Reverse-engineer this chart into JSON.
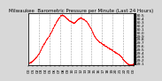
{
  "title": "Milwaukee  Barometric Pressure per Minute (Last 24 Hours)",
  "bg_color": "#d8d8d8",
  "plot_bg_color": "#ffffff",
  "line_color": "#ff0000",
  "grid_color": "#888888",
  "text_color": "#000000",
  "ylim": [
    29.05,
    30.55
  ],
  "yticks": [
    29.1,
    29.2,
    29.3,
    29.4,
    29.5,
    29.6,
    29.7,
    29.8,
    29.9,
    30.0,
    30.1,
    30.2,
    30.3,
    30.4,
    30.5
  ],
  "num_points": 1440,
  "pressure_profile": [
    29.12,
    29.13,
    29.15,
    29.18,
    29.22,
    29.26,
    29.3,
    29.36,
    29.42,
    29.5,
    29.58,
    29.65,
    29.7,
    29.78,
    29.83,
    29.88,
    29.95,
    30.02,
    30.1,
    30.18,
    30.25,
    30.32,
    30.38,
    30.44,
    30.48,
    30.5,
    30.48,
    30.45,
    30.42,
    30.38,
    30.35,
    30.32,
    30.3,
    30.28,
    30.26,
    30.3,
    30.34,
    30.38,
    30.4,
    30.42,
    30.4,
    30.38,
    30.35,
    30.32,
    30.28,
    30.22,
    30.15,
    30.08,
    30.0,
    29.92,
    29.85,
    29.8,
    29.76,
    29.72,
    29.7,
    29.68,
    29.65,
    29.62,
    29.6,
    29.58,
    29.55,
    29.52,
    29.5,
    29.48,
    29.45,
    29.42,
    29.4,
    29.38,
    29.35,
    29.32,
    29.28,
    29.22,
    29.18,
    29.14,
    29.1,
    29.08,
    29.07,
    29.06,
    29.07,
    29.08
  ],
  "marker_size": 0.7,
  "title_fontsize": 4.0,
  "tick_fontsize": 3.2,
  "num_vgrid": 9
}
